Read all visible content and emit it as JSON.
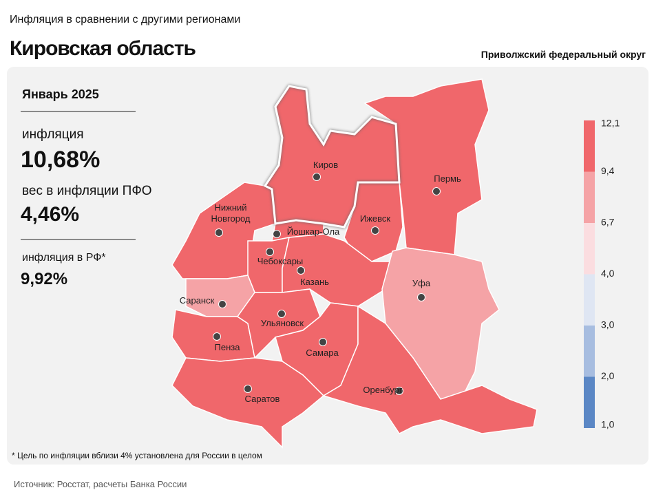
{
  "header": {
    "subtitle": "Инфляция в сравнении с другими регионами",
    "title": "Кировская область",
    "district": "Приволжский федеральный округ"
  },
  "stats": {
    "period": "Январь 2025",
    "inflation_label": "инфляция",
    "inflation": "10,68%",
    "weight_label": "вес в инфляции  ПФО",
    "weight": "4,46%",
    "rf_label": "инфляция  в РФ*",
    "rf": "9,92%"
  },
  "legend": {
    "ticks": [
      "12,1",
      "9,4",
      "6,7",
      "4,0",
      "3,0",
      "2,0",
      "1,0"
    ],
    "colors": [
      "#f0676b",
      "#f5a3a6",
      "#fbdde0",
      "#dfe6f3",
      "#a7bde0",
      "#5b87c5"
    ]
  },
  "regions": [
    {
      "name": "Киров",
      "color": "#f0676b"
    },
    {
      "name": "Пермь",
      "color": "#f0676b"
    },
    {
      "name": "Ижевск",
      "color": "#f0676b"
    },
    {
      "name": "Нижний Новгород",
      "color": "#f0676b"
    },
    {
      "name": "Йошкар-Ола",
      "color": "#f0676b"
    },
    {
      "name": "Чебоксары",
      "color": "#f0676b"
    },
    {
      "name": "Казань",
      "color": "#f0676b"
    },
    {
      "name": "Уфа",
      "color": "#f5a3a6"
    },
    {
      "name": "Саранск",
      "color": "#f5a3a6"
    },
    {
      "name": "Пенза",
      "color": "#f0676b"
    },
    {
      "name": "Ульяновск",
      "color": "#f0676b"
    },
    {
      "name": "Самара",
      "color": "#f0676b"
    },
    {
      "name": "Саратов",
      "color": "#f0676b"
    },
    {
      "name": "Оренбург",
      "color": "#f0676b"
    }
  ],
  "footnote": "* Цель по инфляции  вблизи 4% установлена для России в целом",
  "source": "Источник: Росстат, расчеты Банка России"
}
